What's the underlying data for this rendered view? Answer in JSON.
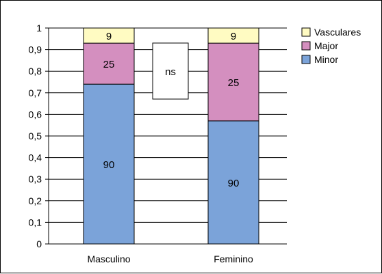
{
  "chart_data": {
    "type": "bar",
    "stacked": true,
    "categories": [
      "Masculino",
      "Feminino"
    ],
    "series": [
      {
        "name": "Minor",
        "values": [
          0.74,
          0.57
        ],
        "labels": [
          "90",
          "90"
        ],
        "color": "#7ba3d9"
      },
      {
        "name": "Major",
        "values": [
          0.19,
          0.36
        ],
        "labels": [
          "25",
          "25"
        ],
        "color": "#d48fbf"
      },
      {
        "name": "Vasculares",
        "values": [
          0.07,
          0.07
        ],
        "labels": [
          "9",
          "9"
        ],
        "color": "#fffbc2"
      }
    ],
    "ylim": [
      0,
      1
    ],
    "yticks": [
      "0",
      "0,1",
      "0,2",
      "0,3",
      "0,4",
      "0,5",
      "0,6",
      "0,7",
      "0,8",
      "0,9",
      "1"
    ],
    "grid": true,
    "legend": "top-right",
    "annotation": "ns",
    "title": "",
    "xlabel": "",
    "ylabel": ""
  }
}
